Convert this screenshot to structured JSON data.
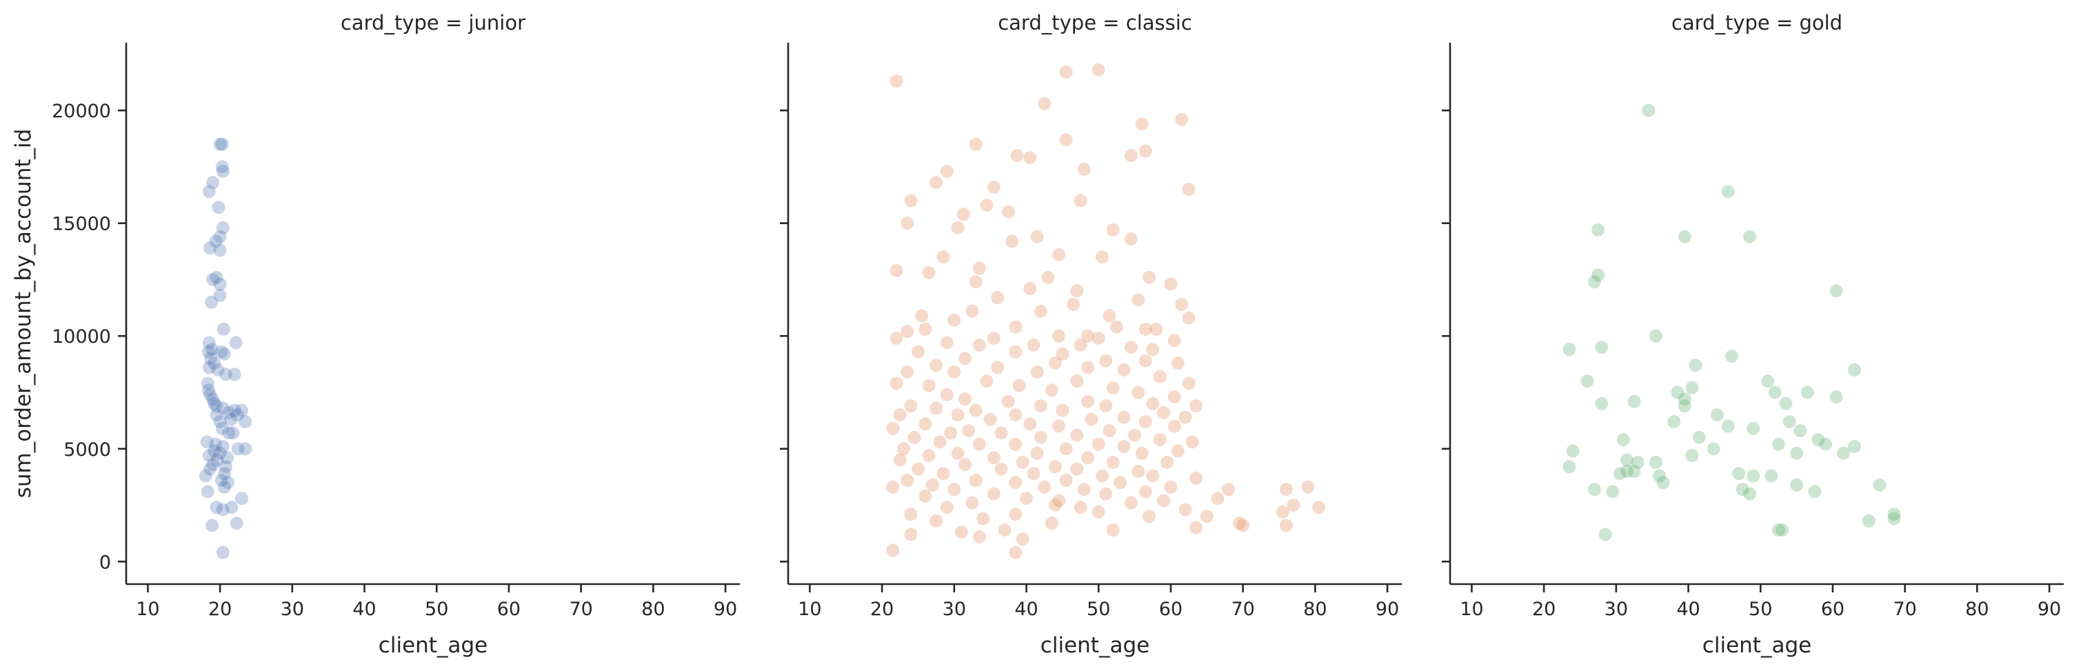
{
  "chart_data": [
    {
      "type": "scatter",
      "title": "card_type = junior",
      "xlabel": "client_age",
      "ylabel": "sum_order_amount_by_account_id",
      "xlim": [
        7,
        92
      ],
      "ylim": [
        -1000,
        23000
      ],
      "xticks": [
        10,
        20,
        30,
        40,
        50,
        60,
        70,
        80,
        90
      ],
      "yticks": [
        0,
        5000,
        10000,
        15000,
        20000
      ],
      "color": "#4c72b0",
      "points": [
        [
          20,
          18500
        ],
        [
          20.3,
          18500
        ],
        [
          20.3,
          17500
        ],
        [
          20.4,
          17300
        ],
        [
          19,
          16800
        ],
        [
          18.5,
          16400
        ],
        [
          19.8,
          15700
        ],
        [
          20.4,
          14800
        ],
        [
          20,
          14400
        ],
        [
          19.4,
          14200
        ],
        [
          18.6,
          13900
        ],
        [
          20,
          13800
        ],
        [
          19.5,
          12600
        ],
        [
          19,
          12500
        ],
        [
          20,
          12300
        ],
        [
          20,
          11800
        ],
        [
          18.8,
          11500
        ],
        [
          20.5,
          10300
        ],
        [
          18.5,
          9700
        ],
        [
          18.9,
          9400
        ],
        [
          18.4,
          9300
        ],
        [
          20.2,
          9300
        ],
        [
          20.6,
          9200
        ],
        [
          22.2,
          9700
        ],
        [
          18.7,
          9000
        ],
        [
          19.2,
          8800
        ],
        [
          18.5,
          8600
        ],
        [
          19.7,
          8500
        ],
        [
          20.8,
          8300
        ],
        [
          22,
          8300
        ],
        [
          18.3,
          7900
        ],
        [
          18.4,
          7600
        ],
        [
          18.6,
          7400
        ],
        [
          19,
          7200
        ],
        [
          19.2,
          7000
        ],
        [
          19.5,
          6900
        ],
        [
          20.4,
          6800
        ],
        [
          21.2,
          6600
        ],
        [
          22,
          6700
        ],
        [
          23,
          6700
        ],
        [
          19.5,
          6500
        ],
        [
          20,
          6200
        ],
        [
          21.5,
          6300
        ],
        [
          22.4,
          6500
        ],
        [
          23.5,
          6200
        ],
        [
          20.3,
          5900
        ],
        [
          21.2,
          5700
        ],
        [
          21.8,
          5700
        ],
        [
          18.2,
          5300
        ],
        [
          19.4,
          5200
        ],
        [
          20.4,
          5100
        ],
        [
          22.5,
          5000
        ],
        [
          23.5,
          5000
        ],
        [
          19.2,
          4900
        ],
        [
          20,
          4800
        ],
        [
          21,
          4600
        ],
        [
          18.5,
          4700
        ],
        [
          19,
          4300
        ],
        [
          20.8,
          4200
        ],
        [
          18.6,
          4100
        ],
        [
          19.6,
          4500
        ],
        [
          20.6,
          3900
        ],
        [
          18,
          3800
        ],
        [
          20.2,
          3600
        ],
        [
          21.1,
          3500
        ],
        [
          20.6,
          3300
        ],
        [
          18.3,
          3100
        ],
        [
          23,
          2800
        ],
        [
          19.5,
          2400
        ],
        [
          20.4,
          2300
        ],
        [
          21.6,
          2400
        ],
        [
          22.3,
          1700
        ],
        [
          18.9,
          1600
        ],
        [
          20.4,
          400
        ]
      ]
    },
    {
      "type": "scatter",
      "title": "card_type = classic",
      "xlabel": "client_age",
      "ylabel": "",
      "xlim": [
        7,
        92
      ],
      "ylim": [
        -1000,
        23000
      ],
      "xticks": [
        10,
        20,
        30,
        40,
        50,
        60,
        70,
        80,
        90
      ],
      "yticks": [
        0,
        5000,
        10000,
        15000,
        20000
      ],
      "color": "#dd8452",
      "points": [
        [
          22,
          21300
        ],
        [
          45.5,
          21700
        ],
        [
          50,
          21800
        ],
        [
          42.5,
          20300
        ],
        [
          61.5,
          19600
        ],
        [
          56,
          19400
        ],
        [
          45.5,
          18700
        ],
        [
          33,
          18500
        ],
        [
          56.5,
          18200
        ],
        [
          38.7,
          18000
        ],
        [
          40.5,
          17900
        ],
        [
          54.5,
          18000
        ],
        [
          29,
          17300
        ],
        [
          48,
          17400
        ],
        [
          27.5,
          16800
        ],
        [
          35.5,
          16600
        ],
        [
          62.5,
          16500
        ],
        [
          24,
          16000
        ],
        [
          47.5,
          16000
        ],
        [
          34.5,
          15800
        ],
        [
          31.3,
          15400
        ],
        [
          37.5,
          15500
        ],
        [
          23.5,
          15000
        ],
        [
          52,
          14700
        ],
        [
          41.5,
          14400
        ],
        [
          54.5,
          14300
        ],
        [
          30.5,
          14800
        ],
        [
          44.5,
          13600
        ],
        [
          28.5,
          13500
        ],
        [
          50.5,
          13500
        ],
        [
          38,
          14200
        ],
        [
          33.5,
          13000
        ],
        [
          22,
          12900
        ],
        [
          26.5,
          12800
        ],
        [
          43,
          12600
        ],
        [
          57,
          12600
        ],
        [
          60,
          12300
        ],
        [
          33,
          12400
        ],
        [
          40.5,
          12100
        ],
        [
          47,
          12000
        ],
        [
          36,
          11700
        ],
        [
          55.5,
          11600
        ],
        [
          46.5,
          11400
        ],
        [
          61.5,
          11400
        ],
        [
          32.5,
          11100
        ],
        [
          42,
          11100
        ],
        [
          51.5,
          10900
        ],
        [
          25.5,
          10900
        ],
        [
          30,
          10700
        ],
        [
          62.5,
          10800
        ],
        [
          38.5,
          10400
        ],
        [
          52.5,
          10400
        ],
        [
          56.5,
          10300
        ],
        [
          23.5,
          10200
        ],
        [
          58,
          10300
        ],
        [
          44.5,
          10000
        ],
        [
          48.5,
          10000
        ],
        [
          26,
          10300
        ],
        [
          22,
          9900
        ],
        [
          35.5,
          9900
        ],
        [
          50,
          9900
        ],
        [
          60.5,
          9800
        ],
        [
          29,
          9700
        ],
        [
          33.5,
          9600
        ],
        [
          41,
          9600
        ],
        [
          47.5,
          9600
        ],
        [
          54.5,
          9500
        ],
        [
          57.5,
          9400
        ],
        [
          25,
          9300
        ],
        [
          38.5,
          9300
        ],
        [
          45,
          9200
        ],
        [
          31.5,
          9000
        ],
        [
          44,
          8800
        ],
        [
          51,
          8900
        ],
        [
          56.5,
          8900
        ],
        [
          61,
          8800
        ],
        [
          27.5,
          8700
        ],
        [
          36,
          8600
        ],
        [
          48.5,
          8600
        ],
        [
          53.5,
          8500
        ],
        [
          23.5,
          8400
        ],
        [
          30,
          8400
        ],
        [
          41.5,
          8400
        ],
        [
          58.5,
          8200
        ],
        [
          22,
          7900
        ],
        [
          34.5,
          8000
        ],
        [
          47,
          8000
        ],
        [
          62.5,
          7900
        ],
        [
          26.5,
          7800
        ],
        [
          39,
          7800
        ],
        [
          52,
          7700
        ],
        [
          43.5,
          7600
        ],
        [
          55.5,
          7500
        ],
        [
          29,
          7400
        ],
        [
          60.5,
          7300
        ],
        [
          31.5,
          7200
        ],
        [
          37.5,
          7100
        ],
        [
          48.5,
          7100
        ],
        [
          57.5,
          7000
        ],
        [
          24,
          6900
        ],
        [
          42,
          6900
        ],
        [
          51,
          6900
        ],
        [
          63.5,
          6900
        ],
        [
          27.5,
          6800
        ],
        [
          33,
          6700
        ],
        [
          45,
          6700
        ],
        [
          59,
          6600
        ],
        [
          22.5,
          6500
        ],
        [
          30.5,
          6500
        ],
        [
          38.5,
          6500
        ],
        [
          53.5,
          6400
        ],
        [
          62,
          6400
        ],
        [
          35,
          6300
        ],
        [
          49,
          6300
        ],
        [
          56.5,
          6200
        ],
        [
          26,
          6100
        ],
        [
          40.5,
          6100
        ],
        [
          44.5,
          6000
        ],
        [
          60.5,
          6000
        ],
        [
          21.5,
          5900
        ],
        [
          32,
          5800
        ],
        [
          51.5,
          5800
        ],
        [
          29.5,
          5700
        ],
        [
          36.5,
          5700
        ],
        [
          47,
          5600
        ],
        [
          55,
          5600
        ],
        [
          24.5,
          5500
        ],
        [
          42,
          5500
        ],
        [
          58.5,
          5400
        ],
        [
          63,
          5300
        ],
        [
          28,
          5300
        ],
        [
          33.5,
          5200
        ],
        [
          38.5,
          5200
        ],
        [
          50,
          5200
        ],
        [
          53.5,
          5100
        ],
        [
          23,
          5000
        ],
        [
          45.5,
          5000
        ],
        [
          61,
          4900
        ],
        [
          30.5,
          4800
        ],
        [
          41.5,
          4800
        ],
        [
          56,
          4800
        ],
        [
          26.5,
          4700
        ],
        [
          35.5,
          4600
        ],
        [
          48.5,
          4600
        ],
        [
          22.5,
          4500
        ],
        [
          39.5,
          4400
        ],
        [
          52,
          4400
        ],
        [
          59.5,
          4400
        ],
        [
          31.5,
          4300
        ],
        [
          44,
          4200
        ],
        [
          25,
          4100
        ],
        [
          36.5,
          4100
        ],
        [
          47,
          4100
        ],
        [
          55.5,
          4000
        ],
        [
          28.5,
          3900
        ],
        [
          41,
          3900
        ],
        [
          50.5,
          3800
        ],
        [
          57.5,
          3800
        ],
        [
          63.5,
          3700
        ],
        [
          23.5,
          3600
        ],
        [
          33,
          3600
        ],
        [
          45.5,
          3600
        ],
        [
          38.5,
          3500
        ],
        [
          53,
          3500
        ],
        [
          27,
          3400
        ],
        [
          42.5,
          3300
        ],
        [
          60,
          3300
        ],
        [
          68,
          3200
        ],
        [
          76,
          3200
        ],
        [
          79,
          3300
        ],
        [
          30,
          3200
        ],
        [
          48,
          3200
        ],
        [
          56.5,
          3100
        ],
        [
          21.5,
          3300
        ],
        [
          35.5,
          3000
        ],
        [
          51,
          3000
        ],
        [
          26,
          2900
        ],
        [
          40,
          2800
        ],
        [
          44.5,
          2700
        ],
        [
          59,
          2700
        ],
        [
          66.5,
          2800
        ],
        [
          32.5,
          2600
        ],
        [
          54.5,
          2600
        ],
        [
          77,
          2500
        ],
        [
          29,
          2400
        ],
        [
          47.5,
          2400
        ],
        [
          62,
          2300
        ],
        [
          75.5,
          2200
        ],
        [
          80.5,
          2400
        ],
        [
          24,
          2100
        ],
        [
          38.5,
          2100
        ],
        [
          50,
          2200
        ],
        [
          34,
          1900
        ],
        [
          57,
          2000
        ],
        [
          65,
          2000
        ],
        [
          27.5,
          1800
        ],
        [
          43.5,
          1700
        ],
        [
          70,
          1600
        ],
        [
          69.5,
          1700
        ],
        [
          63.5,
          1500
        ],
        [
          76,
          1600
        ],
        [
          37,
          1400
        ],
        [
          52,
          1400
        ],
        [
          31,
          1300
        ],
        [
          24,
          1200
        ],
        [
          33.5,
          1100
        ],
        [
          39.5,
          1000
        ],
        [
          21.5,
          500
        ],
        [
          38.5,
          400
        ],
        [
          44,
          2500
        ]
      ]
    },
    {
      "type": "scatter",
      "title": "card_type = gold",
      "xlabel": "client_age",
      "ylabel": "",
      "xlim": [
        7,
        92
      ],
      "ylim": [
        -1000,
        23000
      ],
      "xticks": [
        10,
        20,
        30,
        40,
        50,
        60,
        70,
        80,
        90
      ],
      "yticks": [
        0,
        5000,
        10000,
        15000,
        20000
      ],
      "color": "#55a868",
      "points": [
        [
          34.5,
          20000
        ],
        [
          45.5,
          16400
        ],
        [
          27.5,
          14700
        ],
        [
          39.5,
          14400
        ],
        [
          48.5,
          14400
        ],
        [
          27.5,
          12700
        ],
        [
          27,
          12400
        ],
        [
          60.5,
          12000
        ],
        [
          35.5,
          10000
        ],
        [
          23.5,
          9400
        ],
        [
          28,
          9500
        ],
        [
          46,
          9100
        ],
        [
          41,
          8700
        ],
        [
          63,
          8500
        ],
        [
          26,
          8000
        ],
        [
          51,
          8000
        ],
        [
          40.5,
          7700
        ],
        [
          52,
          7500
        ],
        [
          56.5,
          7500
        ],
        [
          38.5,
          7500
        ],
        [
          60.5,
          7300
        ],
        [
          39.5,
          7200
        ],
        [
          32.5,
          7100
        ],
        [
          28,
          7000
        ],
        [
          39.5,
          6900
        ],
        [
          53.5,
          7000
        ],
        [
          44,
          6500
        ],
        [
          38,
          6200
        ],
        [
          54,
          6200
        ],
        [
          45.5,
          6000
        ],
        [
          49,
          5900
        ],
        [
          55.5,
          5800
        ],
        [
          31,
          5400
        ],
        [
          41.5,
          5500
        ],
        [
          58,
          5400
        ],
        [
          52.5,
          5200
        ],
        [
          59,
          5200
        ],
        [
          43.5,
          5000
        ],
        [
          63,
          5100
        ],
        [
          24,
          4900
        ],
        [
          55,
          4800
        ],
        [
          61.5,
          4800
        ],
        [
          40.5,
          4700
        ],
        [
          33,
          4400
        ],
        [
          31.5,
          4500
        ],
        [
          35.5,
          4400
        ],
        [
          23.5,
          4200
        ],
        [
          31.5,
          4000
        ],
        [
          30.5,
          3900
        ],
        [
          32.5,
          4000
        ],
        [
          36,
          3800
        ],
        [
          51.5,
          3800
        ],
        [
          47,
          3900
        ],
        [
          49,
          3800
        ],
        [
          36.5,
          3500
        ],
        [
          55,
          3400
        ],
        [
          47.5,
          3200
        ],
        [
          57.5,
          3100
        ],
        [
          29.5,
          3100
        ],
        [
          27,
          3200
        ],
        [
          48.5,
          3000
        ],
        [
          66.5,
          3400
        ],
        [
          68.5,
          2100
        ],
        [
          68.5,
          1900
        ],
        [
          65,
          1800
        ],
        [
          52.5,
          1400
        ],
        [
          53,
          1400
        ],
        [
          28.5,
          1200
        ]
      ]
    }
  ]
}
